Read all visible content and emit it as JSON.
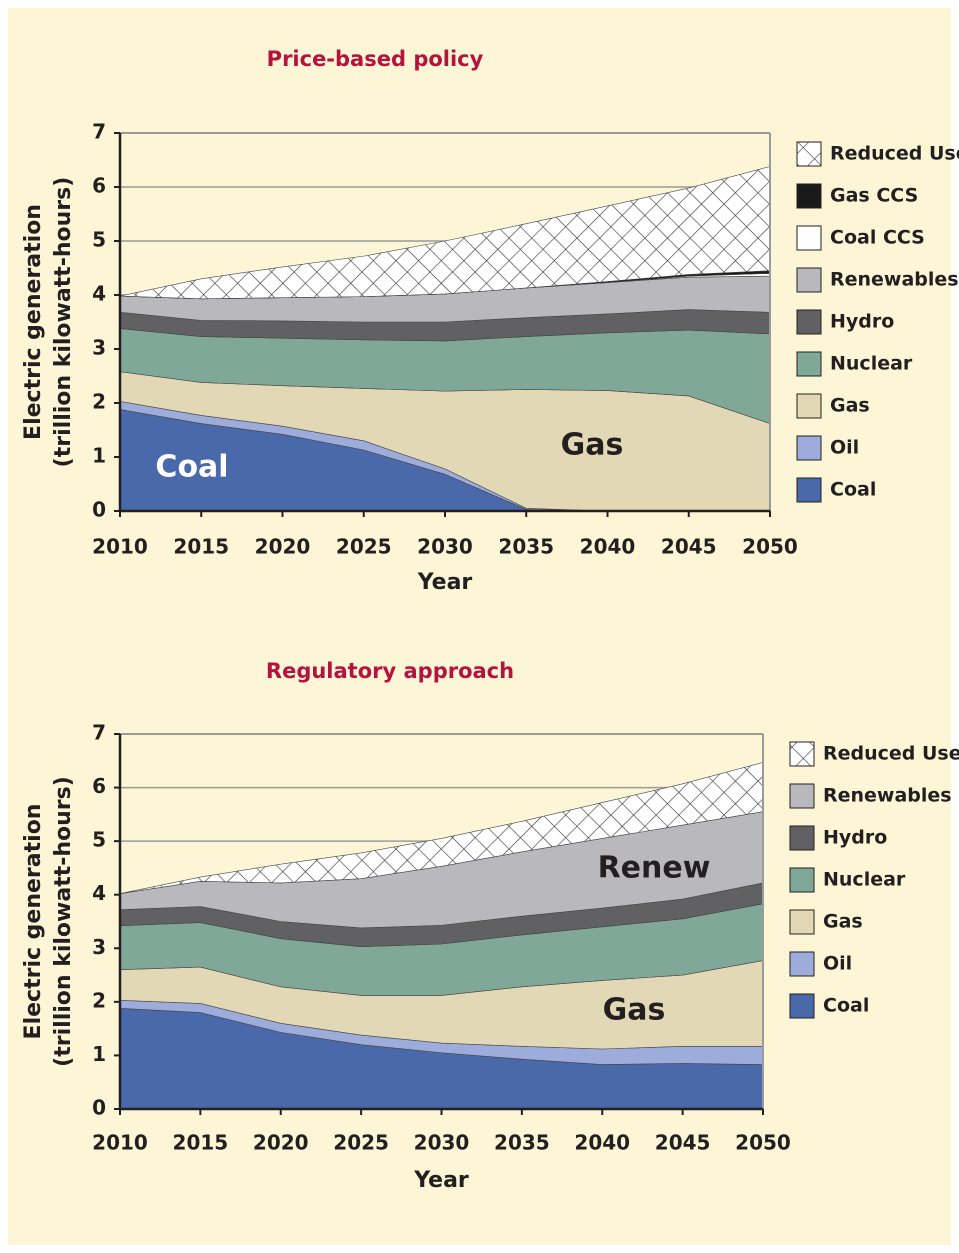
{
  "chart_data": [
    {
      "type": "stacked_area",
      "title": "Price-based policy",
      "xlabel": "Year",
      "ylabel": [
        "Electric generation",
        "(trillion kilowatt-hours)"
      ],
      "x": [
        2010,
        2015,
        2020,
        2025,
        2030,
        2035,
        2040,
        2045,
        2050
      ],
      "xlim": [
        2010,
        2050
      ],
      "xticks": [
        2010,
        2015,
        2020,
        2025,
        2030,
        2035,
        2040,
        2045,
        2050
      ],
      "ylim": [
        0,
        7
      ],
      "yticks": [
        0,
        1,
        2,
        3,
        4,
        5,
        6,
        7
      ],
      "grid": true,
      "legend": "right",
      "annotations": [
        "Coal",
        "Gas"
      ],
      "series": [
        {
          "name": "Coal",
          "color": "#4a69aa",
          "values": [
            1.88,
            1.62,
            1.42,
            1.13,
            0.68,
            0.03,
            0,
            0,
            0
          ]
        },
        {
          "name": "Oil",
          "color": "#9dacdb",
          "values": [
            0.15,
            0.15,
            0.15,
            0.17,
            0.1,
            0.02,
            0,
            0,
            0
          ]
        },
        {
          "name": "Gas",
          "color": "#e2d8b6",
          "values": [
            0.55,
            0.61,
            0.75,
            0.97,
            1.44,
            2.2,
            2.23,
            2.13,
            1.62
          ]
        },
        {
          "name": "Nuclear",
          "color": "#80a898",
          "values": [
            0.8,
            0.85,
            0.88,
            0.9,
            0.93,
            0.98,
            1.07,
            1.22,
            1.66
          ]
        },
        {
          "name": "Hydro",
          "color": "#616163",
          "values": [
            0.3,
            0.3,
            0.32,
            0.33,
            0.35,
            0.35,
            0.35,
            0.38,
            0.4
          ]
        },
        {
          "name": "Renewables",
          "color": "#b9b9bd",
          "values": [
            0.3,
            0.4,
            0.43,
            0.47,
            0.52,
            0.55,
            0.58,
            0.6,
            0.67
          ]
        },
        {
          "name": "Coal CCS",
          "color": "#ffffff",
          "values": [
            0,
            0,
            0,
            0,
            0,
            0,
            0,
            0.02,
            0.05
          ]
        },
        {
          "name": "Gas CCS",
          "color": "#1a1a1a",
          "values": [
            0,
            0,
            0,
            0,
            0,
            0,
            0.02,
            0.03,
            0.05
          ]
        },
        {
          "name": "Reduced Use",
          "color": "#ffffff",
          "hatch": true,
          "values": [
            0,
            0.37,
            0.57,
            0.75,
            0.98,
            1.19,
            1.4,
            1.6,
            1.93
          ]
        }
      ]
    },
    {
      "type": "stacked_area",
      "title": "Regulatory approach",
      "xlabel": "Year",
      "ylabel": [
        "Electric generation",
        "(trillion kilowatt-hours)"
      ],
      "x": [
        2010,
        2015,
        2020,
        2025,
        2030,
        2035,
        2040,
        2045,
        2050
      ],
      "xlim": [
        2010,
        2050
      ],
      "xticks": [
        2010,
        2015,
        2020,
        2025,
        2030,
        2035,
        2040,
        2045,
        2050
      ],
      "ylim": [
        0,
        7
      ],
      "yticks": [
        0,
        1,
        2,
        3,
        4,
        5,
        6,
        7
      ],
      "grid": true,
      "legend": "right",
      "annotations": [
        "Renew",
        "Gas"
      ],
      "series": [
        {
          "name": "Coal",
          "color": "#4a69aa",
          "values": [
            1.88,
            1.8,
            1.43,
            1.2,
            1.05,
            0.93,
            0.83,
            0.85,
            0.83
          ]
        },
        {
          "name": "Oil",
          "color": "#9dacdb",
          "values": [
            0.15,
            0.17,
            0.17,
            0.18,
            0.18,
            0.24,
            0.29,
            0.32,
            0.34
          ]
        },
        {
          "name": "Gas",
          "color": "#e2d8b6",
          "values": [
            0.57,
            0.68,
            0.68,
            0.74,
            0.89,
            1.11,
            1.28,
            1.33,
            1.6
          ]
        },
        {
          "name": "Nuclear",
          "color": "#80a898",
          "values": [
            0.82,
            0.83,
            0.9,
            0.91,
            0.96,
            0.97,
            1.0,
            1.05,
            1.06
          ]
        },
        {
          "name": "Hydro",
          "color": "#616163",
          "values": [
            0.3,
            0.3,
            0.32,
            0.35,
            0.35,
            0.35,
            0.35,
            0.37,
            0.39
          ]
        },
        {
          "name": "Renewables",
          "color": "#b9b9bd",
          "values": [
            0.3,
            0.47,
            0.72,
            0.92,
            1.1,
            1.2,
            1.3,
            1.38,
            1.33
          ]
        },
        {
          "name": "Reduced Use",
          "color": "#ffffff",
          "hatch": true,
          "values": [
            0,
            0.08,
            0.35,
            0.48,
            0.52,
            0.57,
            0.67,
            0.77,
            0.92
          ]
        }
      ]
    }
  ]
}
